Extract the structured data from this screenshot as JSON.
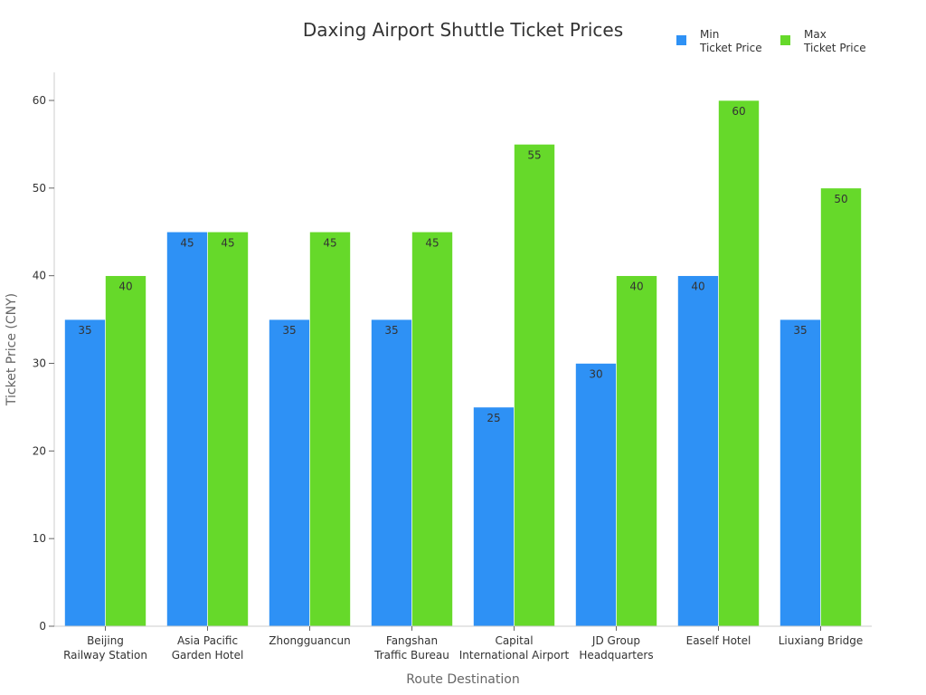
{
  "chart_data": {
    "type": "bar",
    "title": "Daxing Airport Shuttle Ticket Prices",
    "xlabel": "Route Destination",
    "ylabel": "Ticket Price (CNY)",
    "ylim": [
      0,
      63
    ],
    "yticks": [
      0,
      10,
      20,
      30,
      40,
      50,
      60
    ],
    "grid": false,
    "legend_position": "top-right",
    "categories": [
      [
        "Beijing",
        "Railway Station"
      ],
      [
        "Asia Pacific",
        "Garden Hotel"
      ],
      [
        "Zhongguancun"
      ],
      [
        "Fangshan",
        "Traffic Bureau"
      ],
      [
        "Capital",
        "International Airport"
      ],
      [
        "JD Group",
        "Headquarters"
      ],
      [
        "Eaself Hotel"
      ],
      [
        "Liuxiang Bridge"
      ]
    ],
    "series": [
      {
        "name": [
          "Min",
          "Ticket Price"
        ],
        "color": "#2E91F5",
        "values": [
          35,
          45,
          35,
          35,
          25,
          30,
          40,
          35
        ]
      },
      {
        "name": [
          "Max",
          "Ticket Price"
        ],
        "color": "#66D92A",
        "values": [
          40,
          45,
          45,
          45,
          55,
          40,
          60,
          50
        ]
      }
    ]
  }
}
